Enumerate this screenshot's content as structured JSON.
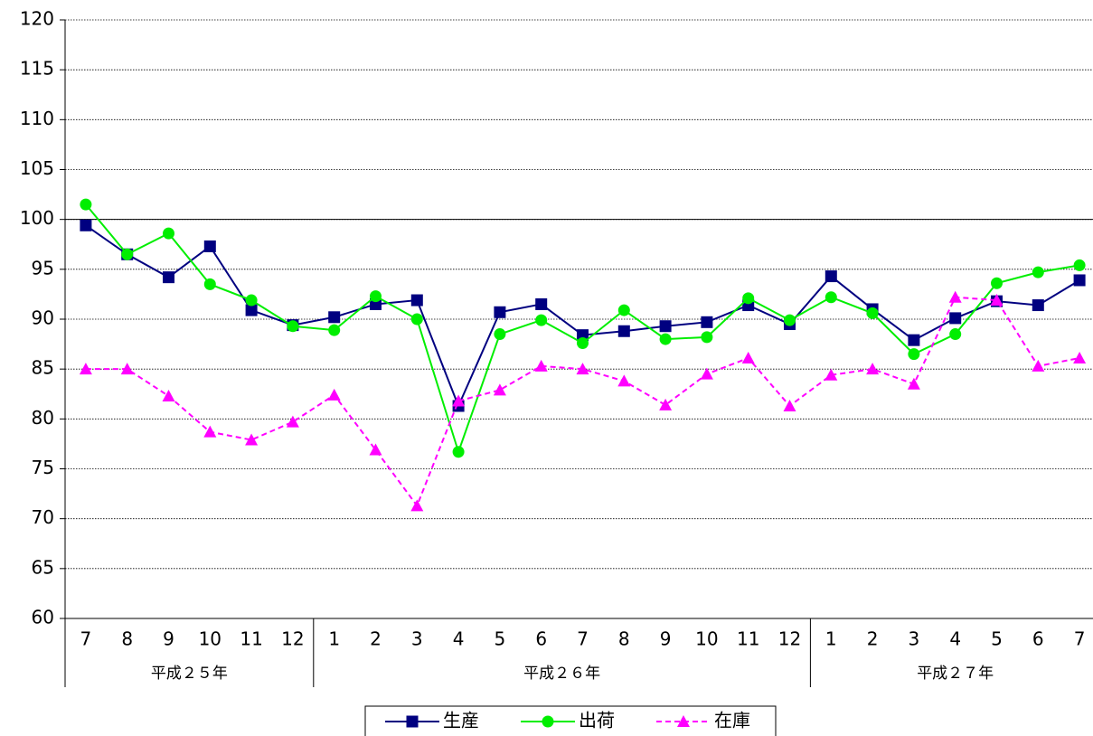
{
  "chart_data": {
    "type": "line",
    "categories": [
      "7",
      "8",
      "9",
      "10",
      "11",
      "12",
      "1",
      "2",
      "3",
      "4",
      "5",
      "6",
      "7",
      "8",
      "9",
      "10",
      "11",
      "12",
      "1",
      "2",
      "3",
      "4",
      "5",
      "6",
      "7"
    ],
    "category_groups": [
      {
        "label": "平成２５年",
        "count": 6
      },
      {
        "label": "平成２６年",
        "count": 12
      },
      {
        "label": "平成２７年",
        "count": 7
      }
    ],
    "series": [
      {
        "name": "生産",
        "color": "#000080",
        "marker": "square",
        "dash": false,
        "values": [
          99.4,
          96.5,
          94.2,
          97.3,
          90.9,
          89.4,
          90.2,
          91.5,
          91.9,
          81.3,
          90.7,
          91.5,
          88.4,
          88.8,
          89.3,
          89.7,
          91.4,
          89.5,
          94.3,
          91.0,
          87.9,
          90.1,
          91.8,
          91.4,
          93.9
        ]
      },
      {
        "name": "出荷",
        "color": "#00ee00",
        "marker": "circle",
        "dash": false,
        "values": [
          101.5,
          96.5,
          98.6,
          93.5,
          91.9,
          89.3,
          88.9,
          92.3,
          90.0,
          76.7,
          88.5,
          89.9,
          87.6,
          90.9,
          88.0,
          88.2,
          92.1,
          89.9,
          92.2,
          90.6,
          86.5,
          88.5,
          93.6,
          94.7,
          95.4
        ]
      },
      {
        "name": "在庫",
        "color": "#ff00ff",
        "marker": "triangle",
        "dash": true,
        "values": [
          85.0,
          85.0,
          82.3,
          78.7,
          77.9,
          79.7,
          82.4,
          76.9,
          71.3,
          81.8,
          82.9,
          85.3,
          85.0,
          83.8,
          81.4,
          84.5,
          86.1,
          81.3,
          84.4,
          85.0,
          83.5,
          92.2,
          91.9,
          85.3,
          86.1
        ]
      }
    ],
    "ylim": [
      60,
      120
    ],
    "yticks": [
      60,
      65,
      70,
      75,
      80,
      85,
      90,
      95,
      100,
      105,
      110,
      115,
      120
    ],
    "reference_line": 100,
    "grid": true,
    "legend": "bottom"
  }
}
